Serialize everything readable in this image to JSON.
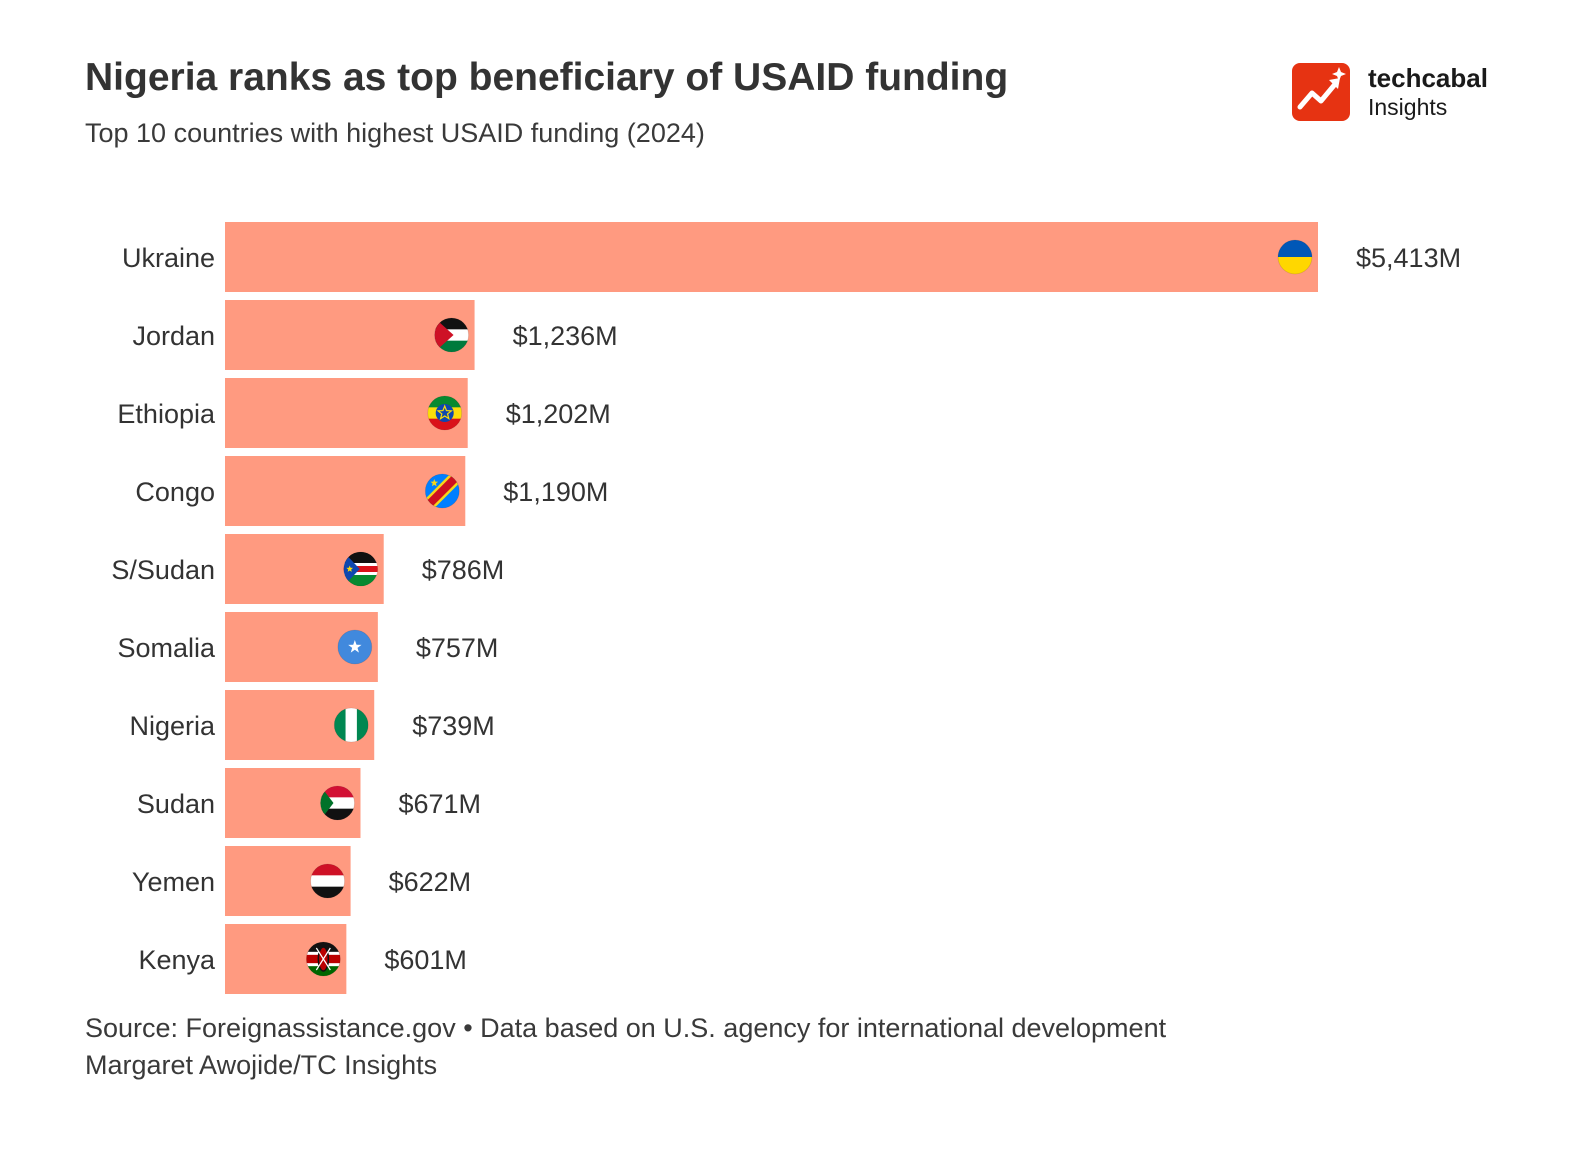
{
  "header": {
    "title": "Nigeria ranks as top beneficiary of USAID funding",
    "subtitle": "Top 10 countries with highest USAID funding (2024)"
  },
  "logo": {
    "word": "techcabal",
    "sub": "Insights",
    "color": "#e63312"
  },
  "footer": {
    "source": "Source: Foreignassistance.gov • Data based on U.S. agency for international development",
    "credit": "Margaret Awojide/TC Insights"
  },
  "colors": {
    "bar": "#ff9a80",
    "text": "#333333"
  },
  "chart_data": {
    "type": "bar",
    "orientation": "horizontal",
    "title": "Nigeria ranks as top beneficiary of USAID funding",
    "subtitle": "Top 10 countries with highest USAID funding (2024)",
    "xlabel": "",
    "ylabel": "",
    "unit": "$M",
    "xlim": [
      0,
      5413
    ],
    "grid": false,
    "categories": [
      "Ukraine",
      "Jordan",
      "Ethiopia",
      "Congo",
      "S/Sudan",
      "Somalia",
      "Nigeria",
      "Sudan",
      "Yemen",
      "Kenya"
    ],
    "values": [
      5413,
      1236,
      1202,
      1190,
      786,
      757,
      739,
      671,
      622,
      601
    ],
    "labels": [
      "$5,413M",
      "$1,236M",
      "$1,202M",
      "$1,190M",
      "$786M",
      "$757M",
      "$739M",
      "$671M",
      "$622M",
      "$601M"
    ],
    "flags": [
      "ukraine-flag-icon",
      "jordan-flag-icon",
      "ethiopia-flag-icon",
      "congo-flag-icon",
      "south-sudan-flag-icon",
      "somalia-flag-icon",
      "nigeria-flag-icon",
      "sudan-flag-icon",
      "yemen-flag-icon",
      "kenya-flag-icon"
    ]
  }
}
